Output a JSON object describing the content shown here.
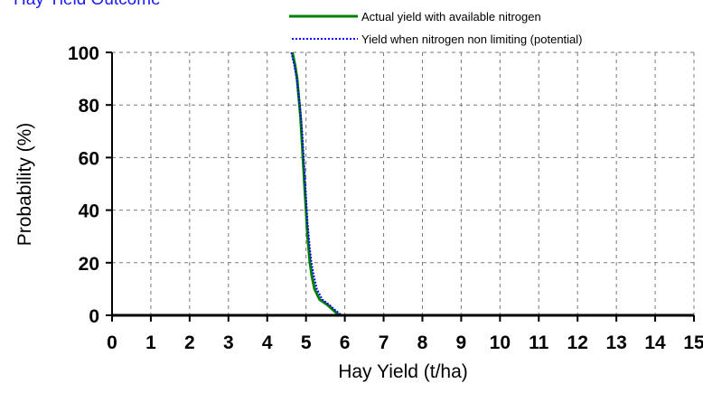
{
  "chart_data": {
    "type": "line",
    "title": "Hay Yield Outcome",
    "xlabel": "Hay Yield (t/ha)",
    "ylabel": "Probability (%)",
    "xlim": [
      0,
      15
    ],
    "ylim": [
      0,
      100
    ],
    "x_ticks": [
      "0",
      "1",
      "2",
      "3",
      "4",
      "5",
      "6",
      "7",
      "8",
      "9",
      "10",
      "11",
      "12",
      "13",
      "14",
      "15"
    ],
    "y_ticks": [
      "0",
      "20",
      "40",
      "60",
      "80",
      "100"
    ],
    "grid": true,
    "legend_position": "top-right",
    "series": [
      {
        "name": "Actual yield with available nitrogen",
        "color": "#007f00",
        "style": "solid",
        "points": [
          [
            4.65,
            100
          ],
          [
            4.72,
            95
          ],
          [
            4.77,
            90
          ],
          [
            4.8,
            85
          ],
          [
            4.83,
            80
          ],
          [
            4.86,
            75
          ],
          [
            4.88,
            70
          ],
          [
            4.9,
            65
          ],
          [
            4.92,
            60
          ],
          [
            4.94,
            55
          ],
          [
            4.96,
            50
          ],
          [
            4.98,
            45
          ],
          [
            5.0,
            40
          ],
          [
            5.02,
            35
          ],
          [
            5.04,
            30
          ],
          [
            5.07,
            25
          ],
          [
            5.1,
            20
          ],
          [
            5.15,
            15
          ],
          [
            5.22,
            10
          ],
          [
            5.35,
            6
          ],
          [
            5.55,
            4
          ],
          [
            5.7,
            2
          ],
          [
            5.85,
            0
          ]
        ]
      },
      {
        "name": "Yield when nitrogen non limiting (potential)",
        "color": "#0000ff",
        "style": "dotted",
        "points": [
          [
            4.62,
            100
          ],
          [
            4.7,
            95
          ],
          [
            4.76,
            90
          ],
          [
            4.8,
            85
          ],
          [
            4.84,
            80
          ],
          [
            4.87,
            75
          ],
          [
            4.9,
            70
          ],
          [
            4.92,
            65
          ],
          [
            4.94,
            60
          ],
          [
            4.96,
            55
          ],
          [
            4.98,
            50
          ],
          [
            5.0,
            45
          ],
          [
            5.02,
            40
          ],
          [
            5.04,
            35
          ],
          [
            5.07,
            30
          ],
          [
            5.1,
            25
          ],
          [
            5.14,
            20
          ],
          [
            5.2,
            15
          ],
          [
            5.28,
            10
          ],
          [
            5.42,
            6
          ],
          [
            5.6,
            4
          ],
          [
            5.75,
            2
          ],
          [
            5.92,
            0
          ]
        ]
      }
    ]
  }
}
